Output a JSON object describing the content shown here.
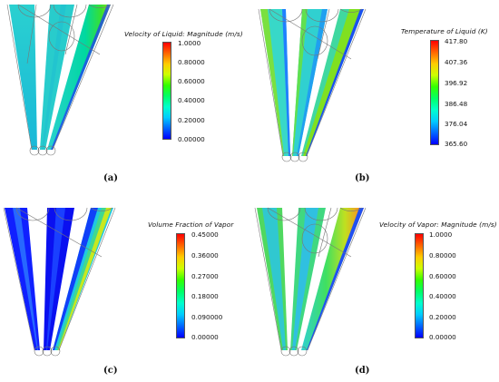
{
  "panels": [
    {
      "id": "a",
      "label": "(a)",
      "legend_title": "Velocity of Liquid: Magnitude (m/s)",
      "ticks": [
        "1.0000",
        "0.80000",
        "0.60000",
        "0.40000",
        "0.20000",
        "0.00000"
      ]
    },
    {
      "id": "b",
      "label": "(b)",
      "legend_title": "Temperature of Liquid (K)",
      "ticks": [
        "417.80",
        "407.36",
        "396.92",
        "386.48",
        "376.04",
        "365.60"
      ]
    },
    {
      "id": "c",
      "label": "(c)",
      "legend_title": "Volume Fraction of Vapor",
      "ticks": [
        "0.45000",
        "0.36000",
        "0.27000",
        "0.18000",
        "0.090000",
        "0.00000"
      ]
    },
    {
      "id": "d",
      "label": "(d)",
      "legend_title": "Velocity of Vapor: Magnitude (m/s)",
      "ticks": [
        "1.0000",
        "0.80000",
        "0.60000",
        "0.40000",
        "0.20000",
        "0.00000"
      ]
    }
  ],
  "colormap": [
    "#0000ff",
    "#0066ff",
    "#00ccff",
    "#00ffcc",
    "#00ff66",
    "#33ff00",
    "#ccff00",
    "#ffcc00",
    "#ff6600",
    "#ff0000"
  ]
}
